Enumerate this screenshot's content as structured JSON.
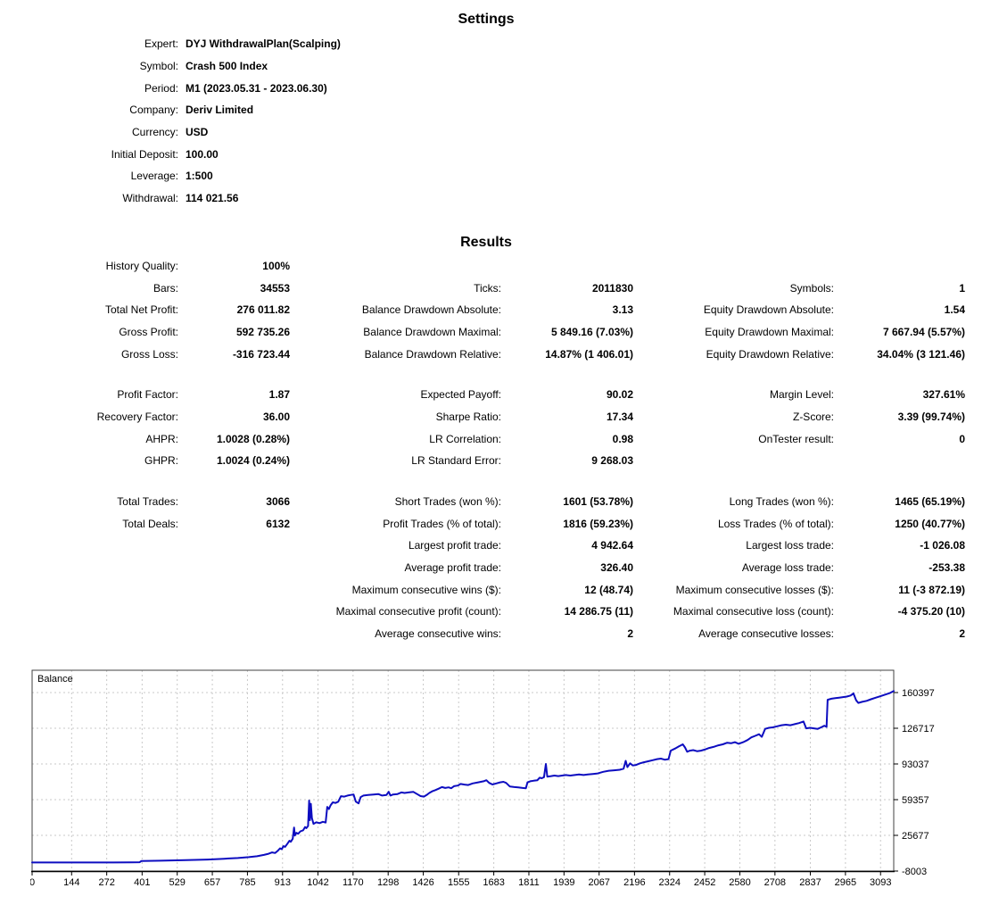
{
  "settings": {
    "title": "Settings",
    "rows": [
      {
        "label": "Expert:",
        "value": "DYJ WithdrawalPlan(Scalping)"
      },
      {
        "label": "Symbol:",
        "value": "Crash 500 Index"
      },
      {
        "label": "Period:",
        "value": "M1 (2023.05.31 - 2023.06.30)"
      },
      {
        "label": "Company:",
        "value": "Deriv Limited"
      },
      {
        "label": "Currency:",
        "value": "USD"
      },
      {
        "label": "Initial Deposit:",
        "value": "100.00"
      },
      {
        "label": "Leverage:",
        "value": "1:500"
      },
      {
        "label": "Withdrawal:",
        "value": "114 021.56"
      }
    ]
  },
  "results": {
    "title": "Results",
    "rows": [
      {
        "cells": [
          {
            "l": "History Quality:",
            "v": "100%"
          },
          null,
          null
        ]
      },
      {
        "cells": [
          {
            "l": "Bars:",
            "v": "34553"
          },
          {
            "l": "Ticks:",
            "v": "2011830"
          },
          {
            "l": "Symbols:",
            "v": "1"
          }
        ]
      },
      {
        "cells": [
          {
            "l": "Total Net Profit:",
            "v": "276 011.82"
          },
          {
            "l": "Balance Drawdown Absolute:",
            "v": "3.13"
          },
          {
            "l": "Equity Drawdown Absolute:",
            "v": "1.54"
          }
        ]
      },
      {
        "cells": [
          {
            "l": "Gross Profit:",
            "v": "592 735.26"
          },
          {
            "l": "Balance Drawdown Maximal:",
            "v": "5 849.16 (7.03%)"
          },
          {
            "l": "Equity Drawdown Maximal:",
            "v": "7 667.94 (5.57%)"
          }
        ]
      },
      {
        "cells": [
          {
            "l": "Gross Loss:",
            "v": "-316 723.44"
          },
          {
            "l": "Balance Drawdown Relative:",
            "v": "14.87% (1 406.01)"
          },
          {
            "l": "Equity Drawdown Relative:",
            "v": "34.04% (3 121.46)"
          }
        ]
      },
      {
        "gap": true,
        "cells": [
          {
            "l": "Profit Factor:",
            "v": "1.87"
          },
          {
            "l": "Expected Payoff:",
            "v": "90.02"
          },
          {
            "l": "Margin Level:",
            "v": "327.61%"
          }
        ]
      },
      {
        "cells": [
          {
            "l": "Recovery Factor:",
            "v": "36.00"
          },
          {
            "l": "Sharpe Ratio:",
            "v": "17.34"
          },
          {
            "l": "Z-Score:",
            "v": "3.39 (99.74%)"
          }
        ]
      },
      {
        "cells": [
          {
            "l": "AHPR:",
            "v": "1.0028 (0.28%)"
          },
          {
            "l": "LR Correlation:",
            "v": "0.98"
          },
          {
            "l": "OnTester result:",
            "v": "0"
          }
        ]
      },
      {
        "cells": [
          {
            "l": "GHPR:",
            "v": "1.0024 (0.24%)"
          },
          {
            "l": "LR Standard Error:",
            "v": "9 268.03"
          },
          null
        ]
      },
      {
        "gap": true,
        "cells": [
          {
            "l": "Total Trades:",
            "v": "3066"
          },
          {
            "l": "Short Trades (won %):",
            "v": "1601 (53.78%)"
          },
          {
            "l": "Long Trades (won %):",
            "v": "1465 (65.19%)"
          }
        ]
      },
      {
        "cells": [
          {
            "l": "Total Deals:",
            "v": "6132"
          },
          {
            "l": "Profit Trades (% of total):",
            "v": "1816 (59.23%)"
          },
          {
            "l": "Loss Trades (% of total):",
            "v": "1250 (40.77%)"
          }
        ]
      },
      {
        "cells": [
          null,
          {
            "l": "Largest profit trade:",
            "v": "4 942.64"
          },
          {
            "l": "Largest loss trade:",
            "v": "-1 026.08"
          }
        ]
      },
      {
        "cells": [
          null,
          {
            "l": "Average profit trade:",
            "v": "326.40"
          },
          {
            "l": "Average loss trade:",
            "v": "-253.38"
          }
        ]
      },
      {
        "cells": [
          null,
          {
            "l": "Maximum consecutive wins ($):",
            "v": "12 (48.74)"
          },
          {
            "l": "Maximum consecutive losses ($):",
            "v": "11 (-3 872.19)"
          }
        ]
      },
      {
        "cells": [
          null,
          {
            "l": "Maximal consecutive profit (count):",
            "v": "14 286.75 (11)"
          },
          {
            "l": "Maximal consecutive loss (count):",
            "v": "-4 375.20 (10)"
          }
        ]
      },
      {
        "cells": [
          null,
          {
            "l": "Average consecutive wins:",
            "v": "2"
          },
          {
            "l": "Average consecutive losses:",
            "v": "2"
          }
        ]
      }
    ]
  },
  "chart_data": {
    "type": "line",
    "legend_label": "Balance",
    "xlabel": "",
    "ylabel": "",
    "xlim": [
      0,
      3141
    ],
    "ylim": [
      -8003,
      181447
    ],
    "x_ticks": [
      0,
      144,
      272,
      401,
      529,
      657,
      785,
      913,
      1042,
      1170,
      1298,
      1426,
      1555,
      1683,
      1811,
      1939,
      2067,
      2196,
      2324,
      2452,
      2580,
      2708,
      2837,
      2965,
      3093
    ],
    "y_ticks": [
      160397,
      126717,
      93037,
      59357,
      25677,
      -8003
    ],
    "grid": true,
    "grid_color": "#c9c9c9",
    "border_color": "#404040",
    "line_color": "#0d0dc0",
    "series": [
      {
        "name": "Balance",
        "points": [
          [
            0,
            100
          ],
          [
            180,
            120
          ],
          [
            360,
            200
          ],
          [
            392,
            300
          ],
          [
            398,
            1400
          ],
          [
            470,
            1800
          ],
          [
            560,
            2300
          ],
          [
            640,
            2900
          ],
          [
            700,
            3600
          ],
          [
            750,
            4300
          ],
          [
            790,
            5100
          ],
          [
            820,
            6000
          ],
          [
            845,
            7200
          ],
          [
            862,
            8300
          ],
          [
            875,
            9600
          ],
          [
            886,
            9000
          ],
          [
            895,
            11000
          ],
          [
            904,
            13500
          ],
          [
            910,
            12600
          ],
          [
            916,
            15500
          ],
          [
            922,
            14800
          ],
          [
            930,
            17500
          ],
          [
            938,
            20500
          ],
          [
            943,
            19600
          ],
          [
            950,
            22500
          ],
          [
            955,
            33000
          ],
          [
            958,
            25500
          ],
          [
            963,
            28000
          ],
          [
            970,
            27200
          ],
          [
            978,
            29500
          ],
          [
            988,
            30500
          ],
          [
            995,
            33500
          ],
          [
            1000,
            32500
          ],
          [
            1006,
            34500
          ],
          [
            1010,
            58500
          ],
          [
            1013,
            40000
          ],
          [
            1016,
            55500
          ],
          [
            1020,
            42000
          ],
          [
            1026,
            36500
          ],
          [
            1036,
            38000
          ],
          [
            1048,
            37200
          ],
          [
            1060,
            38500
          ],
          [
            1070,
            37800
          ],
          [
            1076,
            52500
          ],
          [
            1082,
            50500
          ],
          [
            1088,
            54000
          ],
          [
            1096,
            56800
          ],
          [
            1106,
            56200
          ],
          [
            1116,
            57400
          ],
          [
            1126,
            62600
          ],
          [
            1138,
            62200
          ],
          [
            1150,
            63200
          ],
          [
            1162,
            63800
          ],
          [
            1172,
            64200
          ],
          [
            1180,
            57500
          ],
          [
            1190,
            55800
          ],
          [
            1198,
            61800
          ],
          [
            1208,
            63200
          ],
          [
            1225,
            63700
          ],
          [
            1245,
            64200
          ],
          [
            1262,
            64700
          ],
          [
            1276,
            63200
          ],
          [
            1292,
            63800
          ],
          [
            1300,
            66800
          ],
          [
            1306,
            63200
          ],
          [
            1316,
            64200
          ],
          [
            1332,
            64700
          ],
          [
            1346,
            66200
          ],
          [
            1358,
            65700
          ],
          [
            1372,
            66200
          ],
          [
            1390,
            66700
          ],
          [
            1406,
            64200
          ],
          [
            1416,
            62700
          ],
          [
            1428,
            62200
          ],
          [
            1438,
            63700
          ],
          [
            1448,
            65700
          ],
          [
            1458,
            67200
          ],
          [
            1470,
            68400
          ],
          [
            1482,
            69700
          ],
          [
            1494,
            71200
          ],
          [
            1506,
            70400
          ],
          [
            1518,
            71000
          ],
          [
            1528,
            70100
          ],
          [
            1538,
            72100
          ],
          [
            1552,
            72700
          ],
          [
            1562,
            74200
          ],
          [
            1576,
            73600
          ],
          [
            1590,
            73200
          ],
          [
            1606,
            74700
          ],
          [
            1626,
            75700
          ],
          [
            1646,
            76700
          ],
          [
            1656,
            77700
          ],
          [
            1666,
            75200
          ],
          [
            1678,
            73700
          ],
          [
            1692,
            74700
          ],
          [
            1706,
            75700
          ],
          [
            1718,
            76200
          ],
          [
            1728,
            75200
          ],
          [
            1742,
            71700
          ],
          [
            1758,
            71200
          ],
          [
            1772,
            70900
          ],
          [
            1788,
            70400
          ],
          [
            1800,
            70100
          ],
          [
            1806,
            75700
          ],
          [
            1816,
            76700
          ],
          [
            1828,
            77200
          ],
          [
            1842,
            77700
          ],
          [
            1850,
            80100
          ],
          [
            1858,
            79600
          ],
          [
            1866,
            80600
          ],
          [
            1873,
            93000
          ],
          [
            1878,
            81100
          ],
          [
            1892,
            81600
          ],
          [
            1904,
            82100
          ],
          [
            1918,
            81600
          ],
          [
            1932,
            82100
          ],
          [
            1946,
            82600
          ],
          [
            1962,
            82100
          ],
          [
            1978,
            82600
          ],
          [
            1994,
            83100
          ],
          [
            2010,
            82600
          ],
          [
            2026,
            83100
          ],
          [
            2044,
            83600
          ],
          [
            2062,
            84100
          ],
          [
            2082,
            85600
          ],
          [
            2102,
            86600
          ],
          [
            2122,
            87100
          ],
          [
            2142,
            87600
          ],
          [
            2156,
            88600
          ],
          [
            2164,
            96000
          ],
          [
            2170,
            90100
          ],
          [
            2180,
            93600
          ],
          [
            2190,
            91600
          ],
          [
            2202,
            92100
          ],
          [
            2216,
            93600
          ],
          [
            2230,
            94600
          ],
          [
            2246,
            95600
          ],
          [
            2262,
            96600
          ],
          [
            2278,
            97600
          ],
          [
            2292,
            98100
          ],
          [
            2306,
            97100
          ],
          [
            2320,
            97600
          ],
          [
            2328,
            105600
          ],
          [
            2344,
            107600
          ],
          [
            2358,
            109600
          ],
          [
            2372,
            111600
          ],
          [
            2380,
            108600
          ],
          [
            2388,
            104600
          ],
          [
            2398,
            105600
          ],
          [
            2410,
            106100
          ],
          [
            2424,
            105100
          ],
          [
            2438,
            105600
          ],
          [
            2452,
            106600
          ],
          [
            2468,
            108100
          ],
          [
            2484,
            109100
          ],
          [
            2502,
            110600
          ],
          [
            2518,
            111600
          ],
          [
            2534,
            113100
          ],
          [
            2548,
            112600
          ],
          [
            2562,
            113600
          ],
          [
            2576,
            112100
          ],
          [
            2592,
            113600
          ],
          [
            2608,
            115600
          ],
          [
            2622,
            118100
          ],
          [
            2636,
            119600
          ],
          [
            2650,
            121100
          ],
          [
            2660,
            118600
          ],
          [
            2672,
            126100
          ],
          [
            2686,
            127100
          ],
          [
            2700,
            127600
          ],
          [
            2716,
            128600
          ],
          [
            2732,
            129600
          ],
          [
            2748,
            130100
          ],
          [
            2764,
            129600
          ],
          [
            2780,
            130600
          ],
          [
            2796,
            131600
          ],
          [
            2812,
            133100
          ],
          [
            2822,
            126600
          ],
          [
            2836,
            127100
          ],
          [
            2850,
            126600
          ],
          [
            2864,
            126100
          ],
          [
            2876,
            127600
          ],
          [
            2888,
            129100
          ],
          [
            2896,
            128100
          ],
          [
            2900,
            153600
          ],
          [
            2914,
            154600
          ],
          [
            2928,
            155100
          ],
          [
            2942,
            155600
          ],
          [
            2956,
            156100
          ],
          [
            2970,
            156600
          ],
          [
            2984,
            157600
          ],
          [
            2994,
            159600
          ],
          [
            3004,
            153100
          ],
          [
            3012,
            150600
          ],
          [
            3026,
            151600
          ],
          [
            3042,
            152600
          ],
          [
            3058,
            154100
          ],
          [
            3076,
            155600
          ],
          [
            3094,
            157100
          ],
          [
            3112,
            158600
          ],
          [
            3128,
            160100
          ],
          [
            3141,
            161800
          ]
        ]
      }
    ]
  }
}
